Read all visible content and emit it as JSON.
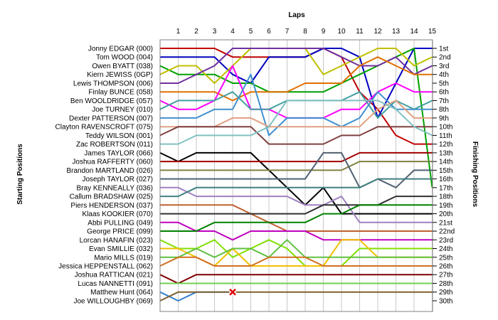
{
  "chart_data": {
    "type": "line",
    "title": "",
    "xlabel": "Laps",
    "ylabel_left": "Starting Positions",
    "ylabel_right": "Finishing Positions",
    "laps": [
      "1",
      "2",
      "3",
      "4",
      "5",
      "6",
      "7",
      "8",
      "9",
      "10",
      "11",
      "12",
      "13",
      "14",
      "15"
    ],
    "finishing_labels": [
      "1st",
      "2nd",
      "3rd",
      "4th",
      "5th",
      "6th",
      "7th",
      "8th",
      "9th",
      "10th",
      "11th",
      "12th",
      "13th",
      "14th",
      "15th",
      "16th",
      "17th",
      "18th",
      "19th",
      "20th",
      "21st",
      "22nd",
      "23rd",
      "24th",
      "25th",
      "26th",
      "27th",
      "28th",
      "29th",
      "30th"
    ],
    "retired_marker": "x-mark",
    "series": [
      {
        "name": "Jonny EDGAR (000)",
        "color": "#c00000",
        "positions": [
          1,
          1,
          1,
          1,
          2,
          2,
          2,
          2,
          2,
          1,
          2,
          6,
          8,
          11,
          12,
          12
        ]
      },
      {
        "name": "Tom WOOD (004)",
        "color": "#0000c0",
        "positions": [
          2,
          2,
          2,
          2,
          4,
          5,
          2,
          2,
          2,
          1,
          1,
          2,
          9,
          5,
          1,
          1
        ]
      },
      {
        "name": "Owen BYATT (038)",
        "color": "#00a000",
        "positions": [
          3,
          4,
          4,
          4,
          5,
          5,
          6,
          6,
          6,
          6,
          5,
          4,
          3,
          2,
          1,
          17
        ]
      },
      {
        "name": "Kiern JEWISS (0GP)",
        "color": "#c0c000",
        "positions": [
          4,
          3,
          3,
          5,
          3,
          1,
          1,
          1,
          1,
          4,
          3,
          2,
          1,
          1,
          3,
          2
        ]
      },
      {
        "name": "Lewis THOMPSON (006)",
        "color": "#7030a0",
        "positions": [
          5,
          5,
          4,
          3,
          1,
          1,
          1,
          1,
          1,
          1,
          2,
          3,
          3,
          2,
          4,
          3
        ]
      },
      {
        "name": "Finlay BUNCE (058)",
        "color": "#e07000",
        "positions": [
          6,
          6,
          6,
          6,
          7,
          6,
          6,
          6,
          5,
          5,
          5,
          3,
          2,
          3,
          4,
          4
        ]
      },
      {
        "name": "Ben WOOLDRIDGE (057)",
        "color": "#ff00ff",
        "positions": [
          7,
          8,
          8,
          7,
          3,
          8,
          8,
          9,
          9,
          9,
          8,
          8,
          6,
          5,
          6,
          6
        ]
      },
      {
        "name": "Joe TURNEY (010)",
        "color": "#40a0a0",
        "positions": [
          8,
          7,
          7,
          7,
          6,
          8,
          8,
          7,
          7,
          7,
          7,
          6,
          9,
          7,
          8,
          7
        ]
      },
      {
        "name": "Dexter PATTERSON (007)",
        "color": "#4090d0",
        "positions": [
          9,
          9,
          9,
          8,
          8,
          4,
          11,
          9,
          9,
          9,
          10,
          9,
          6,
          8,
          8,
          8
        ]
      },
      {
        "name": "Clayton RAVENSCROFT (075)",
        "color": "#e0a080",
        "positions": [
          10,
          10,
          10,
          10,
          9,
          9,
          10,
          10,
          10,
          10,
          10,
          10,
          8,
          7,
          9,
          9
        ]
      },
      {
        "name": "Teddy WILSON (001)",
        "color": "#804040",
        "positions": [
          11,
          10,
          10,
          10,
          10,
          10,
          12,
          12,
          12,
          12,
          11,
          11,
          10,
          10,
          10,
          10
        ]
      },
      {
        "name": "Zac ROBERTSON (011)",
        "color": "#80c0c0",
        "positions": [
          12,
          12,
          11,
          11,
          11,
          11,
          10,
          7,
          7,
          7,
          7,
          7,
          7,
          8,
          10,
          11
        ]
      },
      {
        "name": "James TAYLOR (066)",
        "color": "#000000",
        "positions": [
          13,
          14,
          13,
          13,
          13,
          13,
          15,
          17,
          19,
          17,
          20,
          20,
          20,
          20,
          20,
          20
        ]
      },
      {
        "name": "Joshua RAFFERTY (060)",
        "color": "#a00000",
        "positions": [
          14,
          14,
          14,
          14,
          14,
          14,
          14,
          14,
          14,
          14,
          14,
          13,
          13,
          13,
          13,
          13
        ]
      },
      {
        "name": "Brandon MARTLAND (026)",
        "color": "#808040",
        "positions": [
          15,
          15,
          15,
          15,
          15,
          15,
          15,
          15,
          15,
          15,
          15,
          14,
          14,
          14,
          14,
          14
        ]
      },
      {
        "name": "Joseph TAYLOR (027)",
        "color": "#506070",
        "positions": [
          16,
          16,
          16,
          16,
          16,
          16,
          16,
          16,
          16,
          13,
          13,
          17,
          16,
          17,
          15,
          15
        ]
      },
      {
        "name": "Bray KENNEALLY (036)",
        "color": "#a080c0",
        "positions": [
          17,
          17,
          18,
          18,
          18,
          18,
          18,
          18,
          19,
          19,
          18,
          21,
          21,
          21,
          21,
          21
        ]
      },
      {
        "name": "Callum BRADSHAW (025)",
        "color": "#408080",
        "positions": [
          18,
          18,
          17,
          17,
          17,
          17,
          17,
          17,
          17,
          17,
          17,
          17,
          16,
          16,
          16,
          16
        ]
      },
      {
        "name": "Piers HENDERSON (037)",
        "color": "#c06030",
        "positions": [
          19,
          19,
          19,
          19,
          19,
          20,
          21,
          22,
          22,
          22,
          22,
          22,
          22,
          22,
          22,
          22
        ]
      },
      {
        "name": "Klaas KOOKIER (070)",
        "color": "#303030",
        "positions": [
          20,
          20,
          20,
          20,
          20,
          20,
          20,
          20,
          20,
          19,
          19,
          19,
          19,
          18,
          18,
          18
        ]
      },
      {
        "name": "Abbi PULLING (049)",
        "color": "#c000c0",
        "positions": [
          21,
          21,
          22,
          22,
          23,
          22,
          22,
          22,
          22,
          23,
          23,
          23,
          23,
          23,
          23,
          23
        ]
      },
      {
        "name": "George PRICE (099)",
        "color": "#008000",
        "positions": [
          22,
          22,
          22,
          21,
          21,
          21,
          21,
          21,
          21,
          20,
          20,
          19,
          19,
          19,
          19,
          19
        ]
      },
      {
        "name": "Lorcan HANAFIN (023)",
        "color": "#80e000",
        "positions": [
          23,
          24,
          24,
          23,
          25,
          24,
          23,
          24,
          26,
          26,
          26,
          24,
          24,
          24,
          24,
          24
        ]
      },
      {
        "name": "Evan SMILLIE (032)",
        "color": "#f0c000",
        "positions": [
          24,
          24,
          25,
          26,
          24,
          26,
          26,
          26,
          26,
          26,
          23,
          23,
          25,
          25,
          25,
          25
        ]
      },
      {
        "name": "Mario MILLS (019)",
        "color": "#60c040",
        "positions": [
          25,
          25,
          24,
          25,
          24,
          24,
          25,
          23,
          25,
          25,
          25,
          25,
          25,
          25,
          25,
          25
        ]
      },
      {
        "name": "Jessica HEPPENSTALL (062)",
        "color": "#d07020",
        "positions": [
          26,
          25,
          25,
          26,
          26,
          26,
          25,
          25,
          25,
          26,
          26,
          26,
          26,
          26,
          26,
          26
        ]
      },
      {
        "name": "Joshua RATTICAN (021)",
        "color": "#800000",
        "positions": [
          27,
          28,
          27,
          27,
          27,
          27,
          27,
          27,
          27,
          27,
          27,
          27,
          27,
          27,
          27,
          27
        ]
      },
      {
        "name": "Lucas NANNETTI (091)",
        "color": "#70d050",
        "positions": [
          28,
          28,
          28,
          28,
          28,
          28,
          28,
          28,
          28,
          28,
          28,
          28,
          28,
          28,
          28,
          28
        ]
      },
      {
        "name": "Matthew Hunt (064)",
        "color": "#3080d0",
        "positions": [
          29,
          30,
          29,
          29,
          29
        ]
      },
      {
        "name": "Joe WILLOUGHBY (069)",
        "color": "#806030",
        "positions": [
          30,
          29,
          29,
          29,
          29,
          29,
          29,
          29,
          29,
          29,
          29,
          29,
          29,
          29,
          29,
          29
        ]
      }
    ]
  }
}
